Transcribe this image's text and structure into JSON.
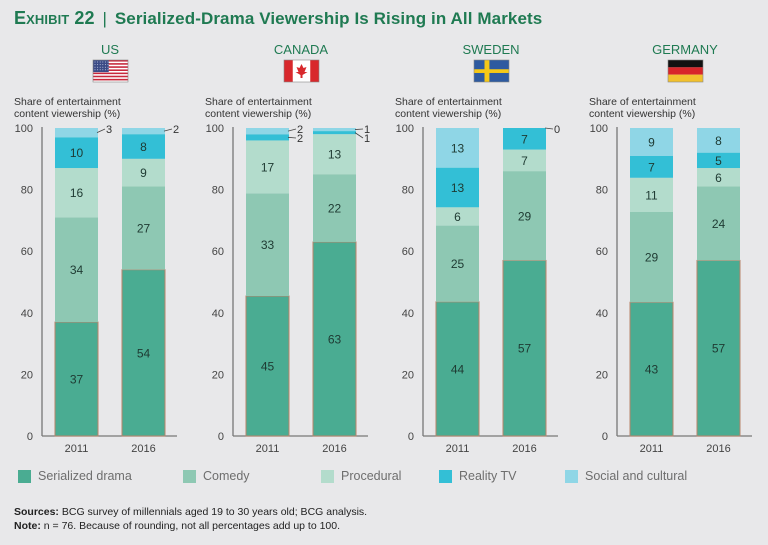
{
  "header": {
    "exhibit": "Exhibit 22",
    "separator": "|",
    "title": "Serialized-Drama Viewership Is Rising in All Markets"
  },
  "colors": {
    "title": "#1f7a52",
    "serialized_drama": "#4aac92",
    "serialized_drama_outline": "#b9846b",
    "comedy": "#8ec8b3",
    "procedural": "#b3dccc",
    "reality_tv": "#33bfd6",
    "social_and_cultural": "#8fd6e6",
    "axis": "#777777",
    "country_label": "#1f7a52"
  },
  "legend": [
    {
      "label": "Serialized drama",
      "color_key": "serialized_drama"
    },
    {
      "label": "Comedy",
      "color_key": "comedy"
    },
    {
      "label": "Procedural",
      "color_key": "procedural"
    },
    {
      "label": "Reality TV",
      "color_key": "reality_tv"
    },
    {
      "label": "Social and cultural",
      "color_key": "social_and_cultural"
    }
  ],
  "footer": {
    "sources_label": "Sources:",
    "sources_text": " BCG survey of millennials aged 19 to 30 years old; BCG analysis.",
    "note_label": "Note:",
    "note_text": " n = 76. Because of rounding, not all percentages add up to 100."
  },
  "chart_data": [
    {
      "type": "bar",
      "stacked": true,
      "title": "US",
      "flag": "us-flag",
      "ylabel": "Share of entertainment content viewership (%)",
      "ylim": [
        0,
        100
      ],
      "yticks": [
        0,
        20,
        40,
        60,
        80,
        100
      ],
      "categories": [
        "2011",
        "2016"
      ],
      "series": [
        {
          "name": "Serialized drama",
          "values": [
            37,
            54
          ]
        },
        {
          "name": "Comedy",
          "values": [
            34,
            27
          ]
        },
        {
          "name": "Procedural",
          "values": [
            16,
            9
          ]
        },
        {
          "name": "Reality TV",
          "values": [
            10,
            8
          ]
        },
        {
          "name": "Social and cultural",
          "values": [
            3,
            2
          ]
        }
      ]
    },
    {
      "type": "bar",
      "stacked": true,
      "title": "CANADA",
      "flag": "canada-flag",
      "ylabel": "Share of entertainment content viewership (%)",
      "ylim": [
        0,
        100
      ],
      "yticks": [
        0,
        20,
        40,
        60,
        80,
        100
      ],
      "categories": [
        "2011",
        "2016"
      ],
      "series": [
        {
          "name": "Serialized drama",
          "values": [
            45,
            63
          ]
        },
        {
          "name": "Comedy",
          "values": [
            33,
            22
          ]
        },
        {
          "name": "Procedural",
          "values": [
            17,
            13
          ]
        },
        {
          "name": "Reality TV",
          "values": [
            2,
            1
          ]
        },
        {
          "name": "Social and cultural",
          "values": [
            2,
            1
          ]
        }
      ]
    },
    {
      "type": "bar",
      "stacked": true,
      "title": "SWEDEN",
      "flag": "sweden-flag",
      "ylabel": "Share of entertainment content viewership (%)",
      "ylim": [
        0,
        100
      ],
      "yticks": [
        0,
        20,
        40,
        60,
        80,
        100
      ],
      "categories": [
        "2011",
        "2016"
      ],
      "series": [
        {
          "name": "Serialized drama",
          "values": [
            44,
            57
          ]
        },
        {
          "name": "Comedy",
          "values": [
            25,
            29
          ]
        },
        {
          "name": "Procedural",
          "values": [
            6,
            7
          ]
        },
        {
          "name": "Reality TV",
          "values": [
            13,
            7
          ]
        },
        {
          "name": "Social and cultural",
          "values": [
            13,
            0
          ]
        }
      ]
    },
    {
      "type": "bar",
      "stacked": true,
      "title": "GERMANY",
      "flag": "germany-flag",
      "ylabel": "Share of entertainment content viewership (%)",
      "ylim": [
        0,
        100
      ],
      "yticks": [
        0,
        20,
        40,
        60,
        80,
        100
      ],
      "categories": [
        "2011",
        "2016"
      ],
      "series": [
        {
          "name": "Serialized drama",
          "values": [
            43,
            57
          ]
        },
        {
          "name": "Comedy",
          "values": [
            29,
            24
          ]
        },
        {
          "name": "Procedural",
          "values": [
            11,
            6
          ]
        },
        {
          "name": "Reality TV",
          "values": [
            7,
            5
          ]
        },
        {
          "name": "Social and cultural",
          "values": [
            9,
            8
          ]
        }
      ]
    }
  ]
}
